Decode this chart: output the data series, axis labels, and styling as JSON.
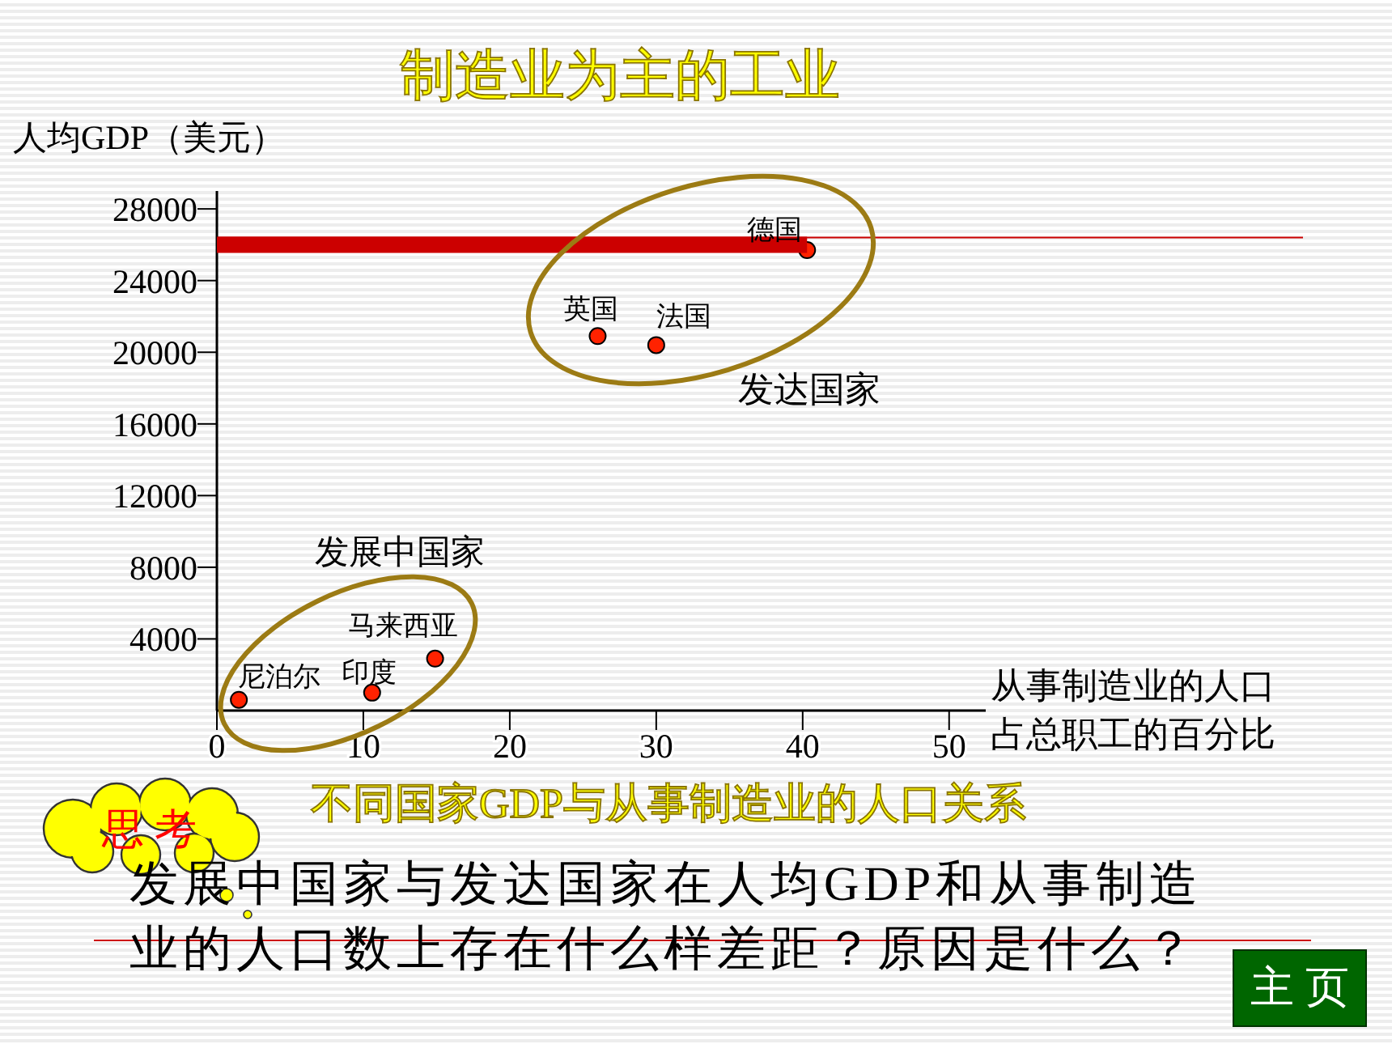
{
  "chart_data": {
    "type": "scatter",
    "title": "制造业为主的工业",
    "xlabel": "从事制造业的人口占总职工的百分比",
    "ylabel": "人均GDP（美元）",
    "xlim": [
      0,
      52.5
    ],
    "xticks": [
      0,
      10,
      20,
      30,
      40,
      50
    ],
    "ylim": [
      0,
      29000
    ],
    "yticks": [
      4000,
      8000,
      12000,
      16000,
      20000,
      24000,
      28000
    ],
    "marker": "circle",
    "series": [
      {
        "name": "尼泊尔",
        "color": "#ff2200",
        "x": [
          1.5
        ],
        "values": [
          600
        ]
      },
      {
        "name": "印度",
        "color": "#ff2200",
        "x": [
          10.6
        ],
        "values": [
          1000
        ]
      },
      {
        "name": "马来西亚",
        "color": "#ff2200",
        "x": [
          14.9
        ],
        "values": [
          2900
        ]
      },
      {
        "name": "英国",
        "color": "#ff2200",
        "x": [
          26
        ],
        "values": [
          20900
        ]
      },
      {
        "name": "法国",
        "color": "#ff2200",
        "x": [
          30
        ],
        "values": [
          20400
        ]
      },
      {
        "name": "德国",
        "color": "#ff2200",
        "x": [
          40.3
        ],
        "values": [
          25700
        ]
      },
      {
        "type": "line",
        "color": "#cc0000",
        "marker": "none",
        "x": [
          0,
          40.3
        ],
        "values": [
          26000,
          26000
        ]
      }
    ],
    "ref_lines": [
      {
        "axis": "y",
        "value": 26400,
        "color": "#cc0000"
      }
    ],
    "annotations": [
      "发达国家",
      "发展中国家",
      "不同国家GDP与从事制造业的人口关系",
      "思 考",
      "发展中国家与发达国家在人均GDP和从事制造业的人口数上存在什么样差距？原因是什么？",
      "主 页"
    ]
  }
}
